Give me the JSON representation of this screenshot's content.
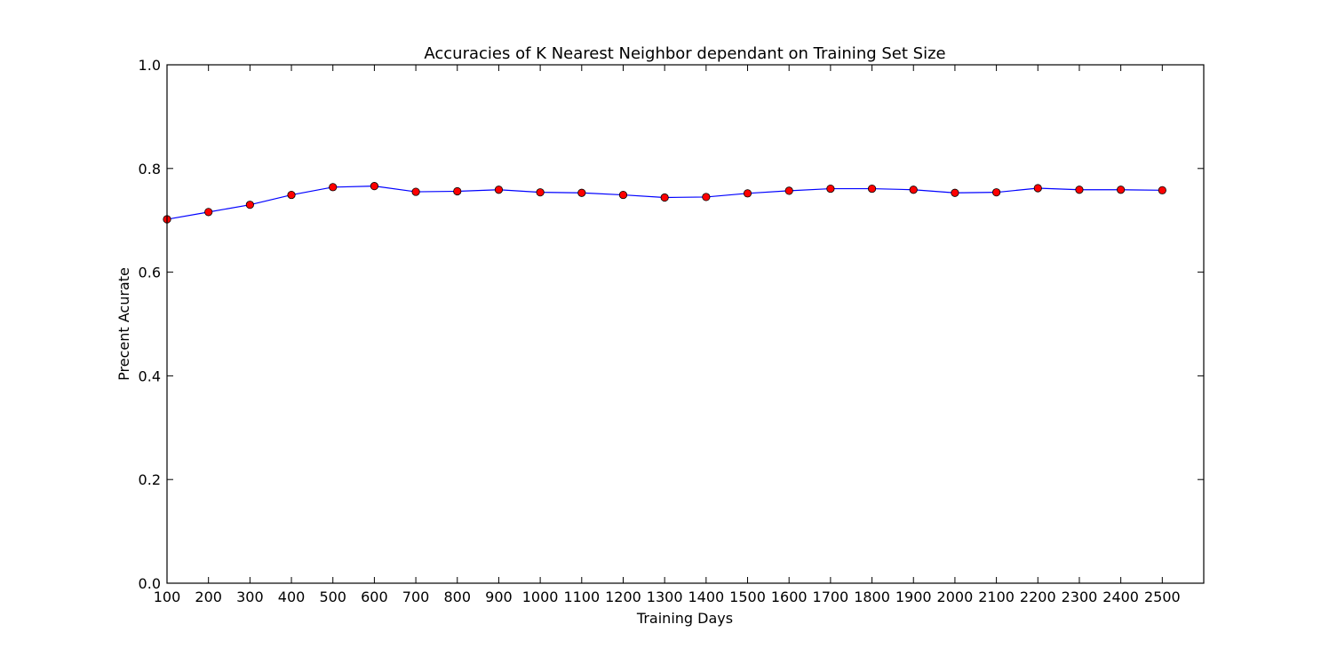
{
  "chart_data": {
    "type": "line",
    "title": "Accuracies of K Nearest Neighbor dependant on Training Set Size",
    "xlabel": "Training Days",
    "ylabel": "Precent Acurate",
    "xlim": [
      100,
      2600
    ],
    "ylim": [
      0.0,
      1.0
    ],
    "x_ticks": [
      100,
      200,
      300,
      400,
      500,
      600,
      700,
      800,
      900,
      1000,
      1100,
      1200,
      1300,
      1400,
      1500,
      1600,
      1700,
      1800,
      1900,
      2000,
      2100,
      2200,
      2300,
      2400,
      2500
    ],
    "y_ticks": [
      "0.0",
      "0.2",
      "0.4",
      "0.6",
      "0.8",
      "1.0"
    ],
    "grid": false,
    "series": [
      {
        "line_color": "#0000ff",
        "marker_color": "#ff0000",
        "x": [
          100,
          200,
          300,
          400,
          500,
          600,
          700,
          800,
          900,
          1000,
          1100,
          1200,
          1300,
          1400,
          1500,
          1600,
          1700,
          1800,
          1900,
          2000,
          2100,
          2200,
          2300,
          2400,
          2500
        ],
        "y": [
          0.702,
          0.716,
          0.73,
          0.749,
          0.764,
          0.766,
          0.755,
          0.756,
          0.759,
          0.754,
          0.753,
          0.749,
          0.744,
          0.745,
          0.752,
          0.757,
          0.761,
          0.761,
          0.759,
          0.753,
          0.754,
          0.762,
          0.759,
          0.759,
          0.758
        ]
      }
    ]
  }
}
